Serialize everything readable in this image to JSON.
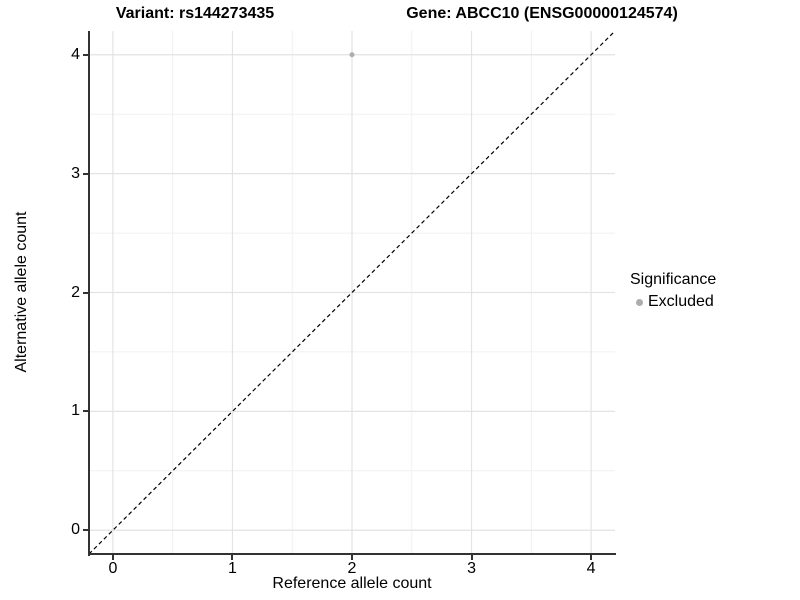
{
  "titles": {
    "variant": "Variant: rs144273435",
    "gene": "Gene: ABCC10 (ENSG00000124574)"
  },
  "colors": {
    "background": "#ffffff",
    "axis": "#333333",
    "text": "#000000",
    "grid_major": "#e3e3e3",
    "grid_minor": "#f0f0f0",
    "point": "#adadad",
    "legend_dot": "#adadad",
    "reference_line": "#000000"
  },
  "chart_data": {
    "type": "scatter",
    "title_left": "Variant: rs144273435",
    "title_right": "Gene: ABCC10 (ENSG00000124574)",
    "xlabel": "Reference allele count",
    "ylabel": "Alternative allele count",
    "xlim": [
      -0.2,
      4.2
    ],
    "ylim": [
      -0.2,
      4.2
    ],
    "xticks": [
      0,
      1,
      2,
      3,
      4
    ],
    "yticks": [
      0,
      1,
      2,
      3,
      4
    ],
    "xticks_minor": [
      0.5,
      1.5,
      2.5,
      3.5
    ],
    "yticks_minor": [
      0.5,
      1.5,
      2.5,
      3.5
    ],
    "grid": true,
    "series": [
      {
        "name": "Excluded",
        "color": "#adadad",
        "points": [
          {
            "x": 2,
            "y": 4
          }
        ]
      }
    ],
    "reference_line": {
      "kind": "abline",
      "intercept": 0,
      "slope": 1,
      "style": "dashed",
      "color": "#000000"
    },
    "legend": {
      "title": "Significance",
      "position": "right",
      "items": [
        {
          "label": "Excluded",
          "color": "#adadad"
        }
      ]
    }
  }
}
